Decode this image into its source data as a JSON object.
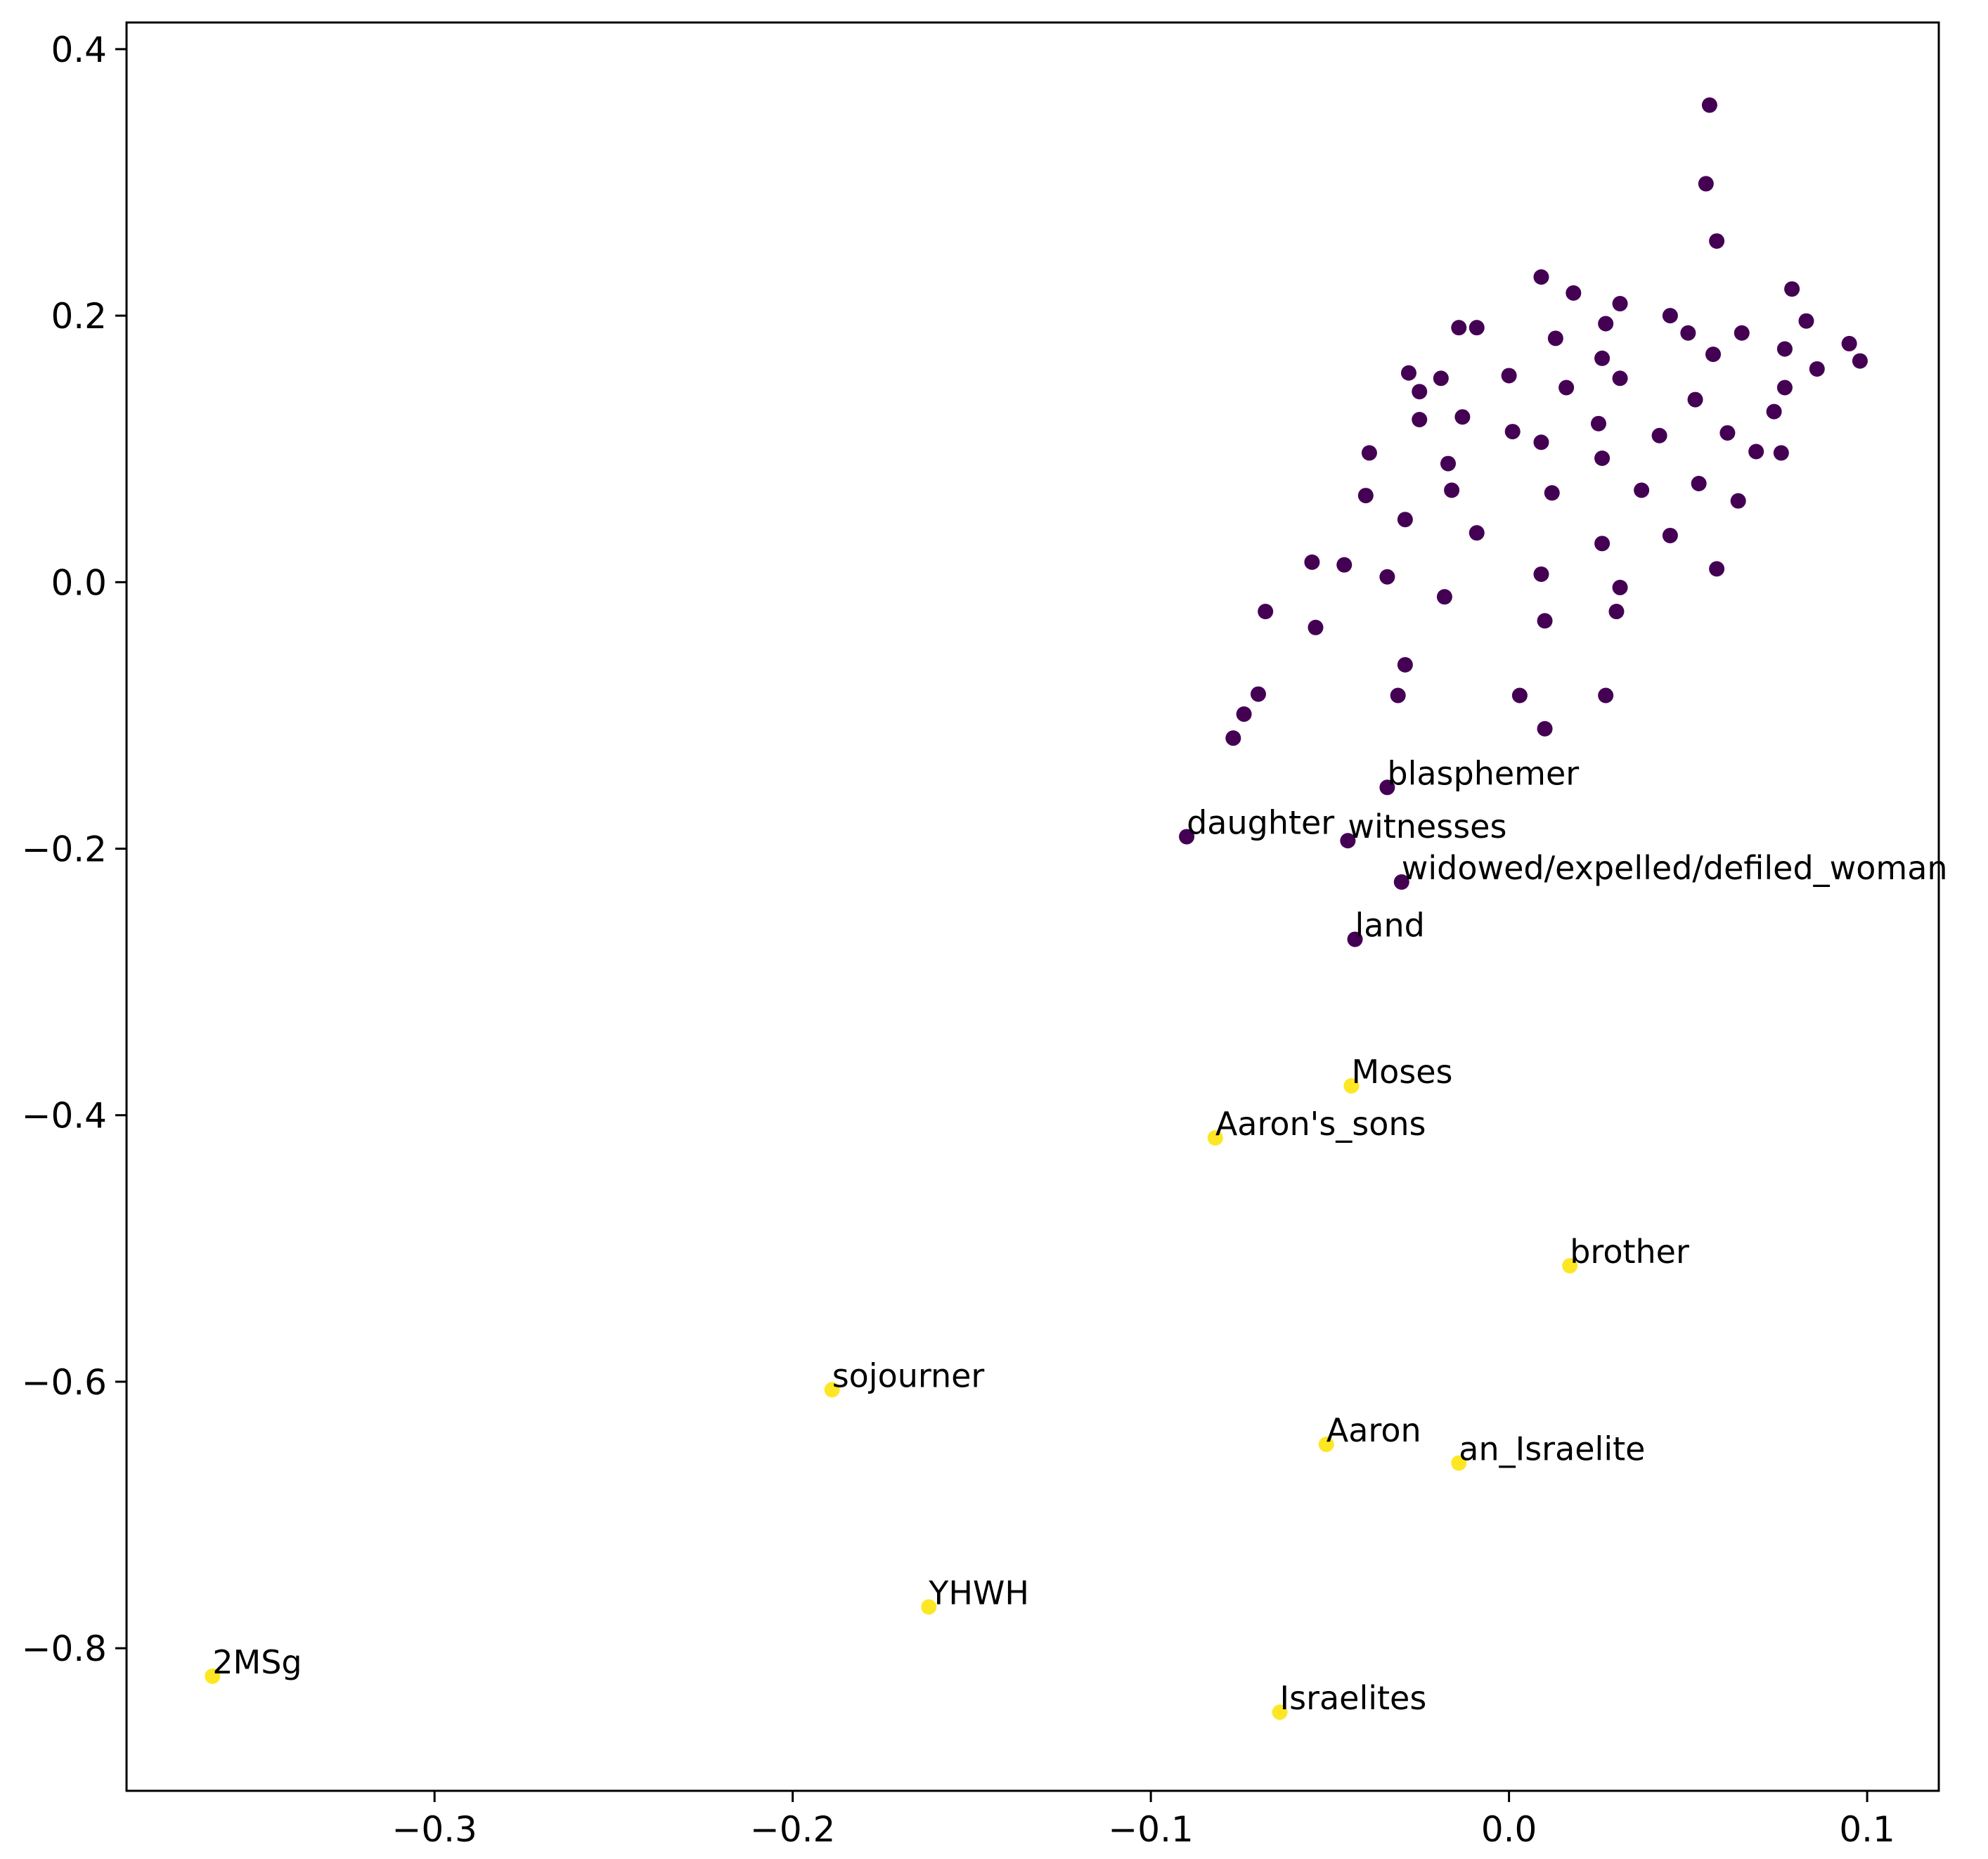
{
  "chart_data": {
    "type": "scatter",
    "title": "",
    "xlabel": "",
    "ylabel": "",
    "xlim": [
      -0.386,
      0.12
    ],
    "ylim": [
      -0.907,
      0.42
    ],
    "grid": false,
    "xticks": [
      {
        "value": -0.3,
        "label": "−0.3"
      },
      {
        "value": -0.2,
        "label": "−0.2"
      },
      {
        "value": -0.1,
        "label": "−0.1"
      },
      {
        "value": 0.0,
        "label": "0.0"
      },
      {
        "value": 0.1,
        "label": "0.1"
      }
    ],
    "yticks": [
      {
        "value": 0.4,
        "label": "0.4"
      },
      {
        "value": 0.2,
        "label": "0.2"
      },
      {
        "value": 0.0,
        "label": "0.0"
      },
      {
        "value": -0.2,
        "label": "−0.2"
      },
      {
        "value": -0.4,
        "label": "−0.4"
      },
      {
        "value": -0.6,
        "label": "−0.6"
      },
      {
        "value": -0.8,
        "label": "−0.8"
      }
    ],
    "colors": {
      "cluster_0": "#440154",
      "cluster_1": "#fde725"
    },
    "labeled_points": [
      {
        "label": "blasphemer",
        "x": -0.034,
        "y": -0.154,
        "cluster": 0
      },
      {
        "label": "daughter",
        "x": -0.09,
        "y": -0.191,
        "cluster": 0
      },
      {
        "label": "witnesses",
        "x": -0.045,
        "y": -0.194,
        "cluster": 0
      },
      {
        "label": "widowed/expelled/defiled_woman",
        "x": -0.03,
        "y": -0.225,
        "cluster": 0
      },
      {
        "label": "land",
        "x": -0.043,
        "y": -0.268,
        "cluster": 0
      },
      {
        "label": "Moses",
        "x": -0.044,
        "y": -0.378,
        "cluster": 1
      },
      {
        "label": "Aaron's_sons",
        "x": -0.082,
        "y": -0.417,
        "cluster": 1
      },
      {
        "label": "brother",
        "x": 0.017,
        "y": -0.513,
        "cluster": 1
      },
      {
        "label": "sojourner",
        "x": -0.189,
        "y": -0.606,
        "cluster": 1
      },
      {
        "label": "Aaron",
        "x": -0.051,
        "y": -0.647,
        "cluster": 1
      },
      {
        "label": "an_Israelite",
        "x": -0.014,
        "y": -0.661,
        "cluster": 1
      },
      {
        "label": "YHWH",
        "x": -0.162,
        "y": -0.769,
        "cluster": 1
      },
      {
        "label": "2MSg",
        "x": -0.362,
        "y": -0.821,
        "cluster": 1
      },
      {
        "label": "Israelites",
        "x": -0.064,
        "y": -0.848,
        "cluster": 1
      }
    ],
    "unlabeled_points": [
      [
        0.056,
        0.358
      ],
      [
        0.055,
        0.299
      ],
      [
        0.058,
        0.256
      ],
      [
        0.009,
        0.229
      ],
      [
        0.018,
        0.217
      ],
      [
        0.079,
        0.22
      ],
      [
        0.031,
        0.209
      ],
      [
        0.045,
        0.2
      ],
      [
        0.027,
        0.194
      ],
      [
        -0.014,
        0.191
      ],
      [
        -0.009,
        0.191
      ],
      [
        0.05,
        0.187
      ],
      [
        0.065,
        0.187
      ],
      [
        0.083,
        0.196
      ],
      [
        0.013,
        0.183
      ],
      [
        0.057,
        0.171
      ],
      [
        0.077,
        0.175
      ],
      [
        0.095,
        0.179
      ],
      [
        0.098,
        0.166
      ],
      [
        0.026,
        0.168
      ],
      [
        -0.028,
        0.157
      ],
      [
        -0.019,
        0.153
      ],
      [
        0.0,
        0.155
      ],
      [
        0.031,
        0.153
      ],
      [
        0.086,
        0.16
      ],
      [
        -0.025,
        0.143
      ],
      [
        0.016,
        0.146
      ],
      [
        0.077,
        0.146
      ],
      [
        0.052,
        0.137
      ],
      [
        -0.025,
        0.122
      ],
      [
        -0.013,
        0.124
      ],
      [
        0.025,
        0.119
      ],
      [
        0.074,
        0.128
      ],
      [
        0.001,
        0.113
      ],
      [
        0.009,
        0.105
      ],
      [
        0.042,
        0.11
      ],
      [
        0.061,
        0.112
      ],
      [
        -0.039,
        0.097
      ],
      [
        -0.017,
        0.089
      ],
      [
        0.026,
        0.093
      ],
      [
        0.069,
        0.098
      ],
      [
        0.076,
        0.097
      ],
      [
        -0.04,
        0.065
      ],
      [
        -0.016,
        0.069
      ],
      [
        0.012,
        0.067
      ],
      [
        0.037,
        0.069
      ],
      [
        0.053,
        0.074
      ],
      [
        0.064,
        0.061
      ],
      [
        -0.029,
        0.047
      ],
      [
        -0.009,
        0.037
      ],
      [
        0.045,
        0.035
      ],
      [
        0.026,
        0.029
      ],
      [
        -0.055,
        0.015
      ],
      [
        -0.046,
        0.013
      ],
      [
        -0.034,
        0.004
      ],
      [
        0.009,
        0.006
      ],
      [
        0.058,
        0.01
      ],
      [
        -0.018,
        -0.011
      ],
      [
        0.031,
        -0.004
      ],
      [
        -0.068,
        -0.022
      ],
      [
        0.03,
        -0.022
      ],
      [
        -0.054,
        -0.034
      ],
      [
        0.01,
        -0.029
      ],
      [
        -0.029,
        -0.062
      ],
      [
        -0.07,
        -0.084
      ],
      [
        -0.031,
        -0.085
      ],
      [
        0.003,
        -0.085
      ],
      [
        0.027,
        -0.085
      ],
      [
        -0.074,
        -0.099
      ],
      [
        0.01,
        -0.11
      ],
      [
        -0.077,
        -0.117
      ]
    ]
  }
}
